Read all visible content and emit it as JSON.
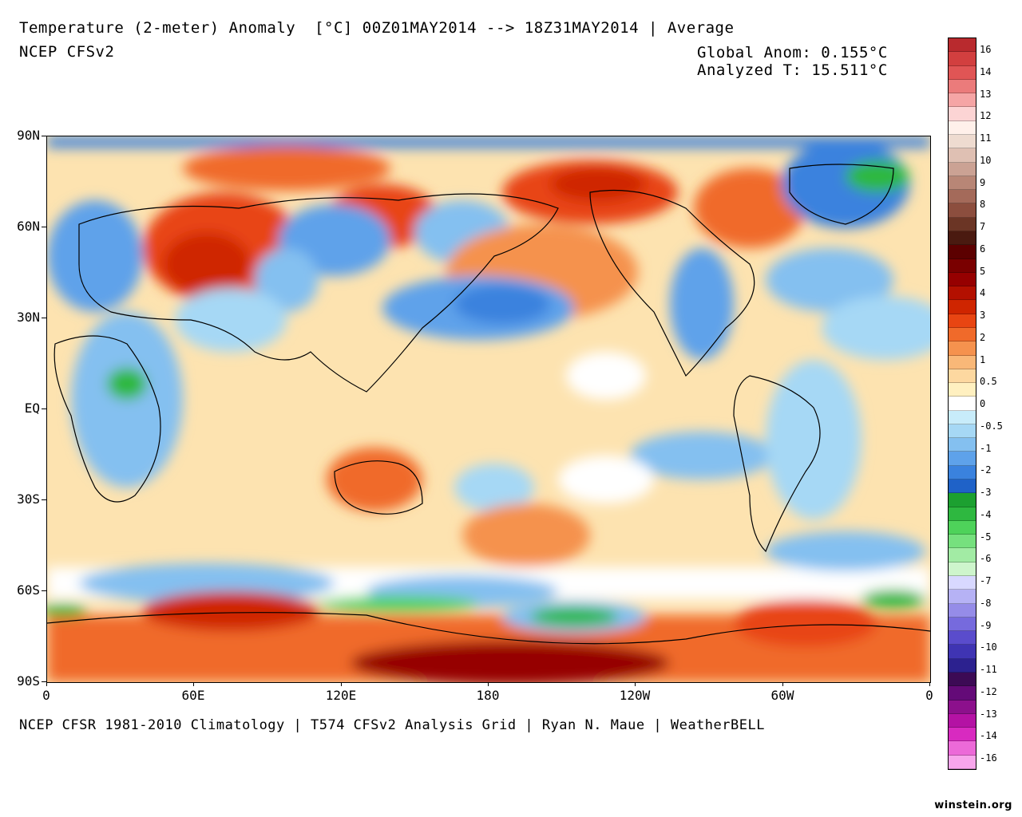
{
  "header": {
    "title": "Temperature (2-meter) Anomaly  [°C] 00Z01MAY2014 --> 18Z31MAY2014 | Average",
    "model": "NCEP CFSv2",
    "global_anom": "Global Anom: 0.155°C",
    "analyzed_t": "Analyzed T: 15.511°C"
  },
  "footer": {
    "credits": "NCEP CFSR 1981-2010 Climatology | T574 CFSv2 Analysis Grid | Ryan N. Maue | WeatherBELL",
    "watermark": "winstein.org"
  },
  "axes": {
    "lat_labels": [
      "90N",
      "60N",
      "30N",
      "EQ",
      "30S",
      "60S",
      "90S"
    ],
    "lon_labels": [
      "0",
      "60E",
      "120E",
      "180",
      "120W",
      "60W",
      "0"
    ]
  },
  "colorbar": {
    "labels": [
      "16",
      "14",
      "13",
      "12",
      "11",
      "10",
      "9",
      "8",
      "7",
      "6",
      "5",
      "4",
      "3",
      "2",
      "1",
      "0.5",
      "0",
      "-0.5",
      "-1",
      "-2",
      "-3",
      "-4",
      "-5",
      "-6",
      "-7",
      "-8",
      "-9",
      "-10",
      "-11",
      "-12",
      "-13",
      "-14",
      "-16"
    ],
    "colors": [
      "#b92a2e",
      "#d23f3f",
      "#e05555",
      "#eb7b7b",
      "#f5a5a5",
      "#fcd4d4",
      "#fff0ea",
      "#eedbd0",
      "#dfc0b3",
      "#cba294",
      "#b88676",
      "#a46a5a",
      "#8c4e3e",
      "#6b3525",
      "#4a1a10",
      "#5c0000",
      "#7a0000",
      "#960000",
      "#b31000",
      "#cf2500",
      "#e84512",
      "#f06a2a",
      "#f5924e",
      "#f9b878",
      "#fdd8a0",
      "#fff0c0",
      "#ffffff",
      "#c8ecfa",
      "#a6d8f5",
      "#84c0f0",
      "#5ea2ea",
      "#3a82de",
      "#1f62c8",
      "#1ca030",
      "#2eb840",
      "#4ed25a",
      "#76e07e",
      "#a2eba4",
      "#cef5cc",
      "#d8d8ff",
      "#b6b2f5",
      "#958ce8",
      "#766add",
      "#5a4ccc",
      "#3f34b3",
      "#2c218f",
      "#3c0a55",
      "#640a78",
      "#8c108c",
      "#b412a4",
      "#d82ac0",
      "#ec6ad8",
      "#f8a6ec"
    ]
  },
  "map_data": {
    "variable": "2-m temperature anomaly",
    "units": "°C",
    "period": "00Z01MAY2014 --> 18Z31MAY2014",
    "global_anomaly_c": 0.155,
    "analyzed_temperature_c": 15.511,
    "lat_range": [
      -90,
      90
    ],
    "lon_range": [
      0,
      360
    ]
  }
}
